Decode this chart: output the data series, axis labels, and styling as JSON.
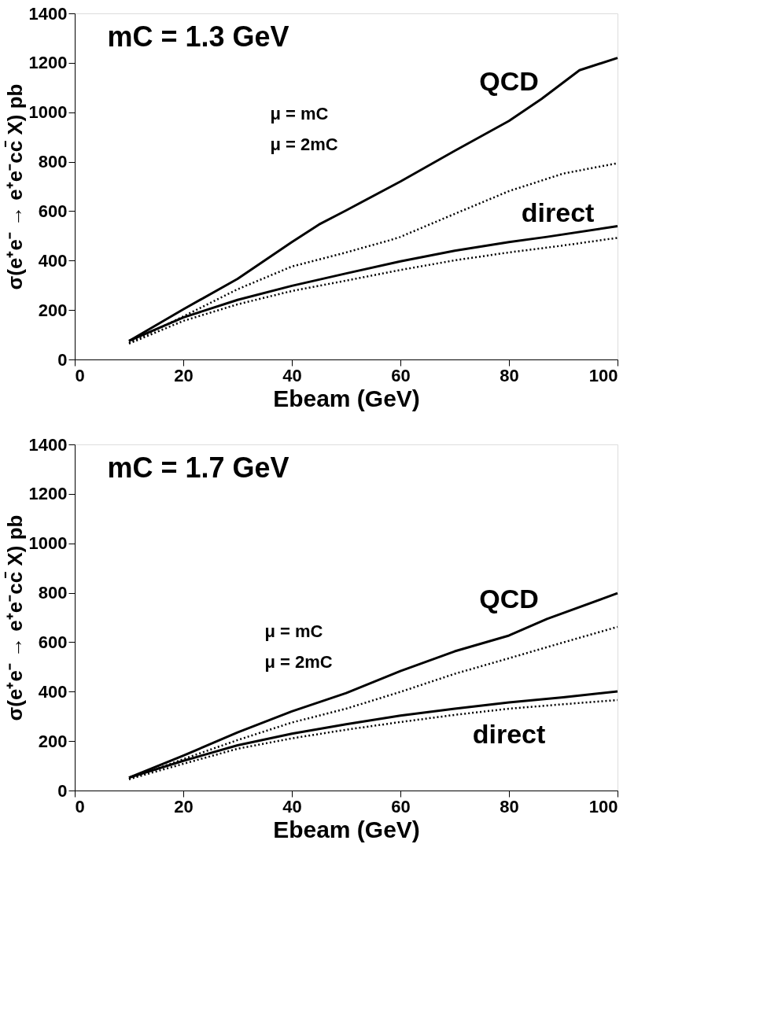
{
  "chart_data": [
    {
      "type": "line",
      "xlabel": "Ebeam (GeV)",
      "ylabel": "σ(e⁺e⁻ → e⁺e⁻cc̄ X) pb",
      "xlim": [
        0,
        100
      ],
      "ylim": [
        0,
        1400
      ],
      "xticks": [
        0,
        20,
        40,
        60,
        80,
        100
      ],
      "yticks": [
        0,
        200,
        400,
        600,
        800,
        1000,
        1200,
        1400
      ],
      "grid": false,
      "x": [
        10,
        20,
        30,
        40,
        45,
        50,
        60,
        70,
        80,
        86,
        93,
        100
      ],
      "series": [
        {
          "color": "#000000",
          "line_style": "solid",
          "values": [
            75,
            203,
            326,
            475,
            546,
            603,
            720,
            844,
            965,
            1054,
            1170,
            1220
          ]
        },
        {
          "color": "#000000",
          "line_style": "dotted",
          "x": [
            10,
            20,
            30,
            40,
            50,
            58,
            60,
            70,
            80,
            90,
            100
          ],
          "values": [
            67,
            174,
            284,
            376,
            433,
            482,
            496,
            589,
            681,
            752,
            794
          ]
        },
        {
          "color": "#000000",
          "line_style": "solid",
          "x": [
            10,
            20,
            30,
            40,
            50,
            60,
            70,
            80,
            87,
            100
          ],
          "values": [
            75,
            170,
            241,
            298,
            348,
            397,
            440,
            475,
            496,
            539
          ]
        },
        {
          "color": "#000000",
          "line_style": "dotted",
          "x": [
            10,
            20,
            30,
            40,
            50,
            60,
            70,
            80,
            90,
            100
          ],
          "values": [
            64,
            156,
            223,
            277,
            319,
            362,
            401,
            433,
            461,
            492
          ]
        }
      ],
      "annotations": [
        "mC = 1.3 GeV",
        "QCD",
        "direct",
        "μ = mC",
        "μ = 2mC"
      ]
    },
    {
      "type": "line",
      "xlabel": "Ebeam (GeV)",
      "ylabel": "σ(e⁺e⁻ → e⁺e⁻cc̄ X) pb",
      "xlim": [
        0,
        100
      ],
      "ylim": [
        0,
        1400
      ],
      "xticks": [
        0,
        20,
        40,
        60,
        80,
        100
      ],
      "yticks": [
        0,
        200,
        400,
        600,
        800,
        1000,
        1200,
        1400
      ],
      "grid": false,
      "x": [
        10,
        20,
        30,
        40,
        50,
        60,
        70,
        80,
        87,
        100
      ],
      "series": [
        {
          "color": "#000000",
          "line_style": "solid",
          "values": [
            52,
            141,
            235,
            320,
            394,
            483,
            563,
            627,
            694,
            798
          ]
        },
        {
          "color": "#000000",
          "line_style": "dotted",
          "x": [
            10,
            20,
            30,
            40,
            50,
            60,
            70,
            80,
            90,
            100
          ],
          "values": [
            46,
            127,
            204,
            275,
            331,
            399,
            472,
            535,
            599,
            662
          ]
        },
        {
          "color": "#000000",
          "line_style": "solid",
          "x": [
            10,
            20,
            30,
            40,
            50,
            60,
            70,
            80,
            90,
            100
          ],
          "values": [
            52,
            120,
            183,
            230,
            268,
            303,
            331,
            356,
            377,
            401
          ]
        },
        {
          "color": "#000000",
          "line_style": "dotted",
          "x": [
            10,
            20,
            30,
            40,
            50,
            60,
            70,
            80,
            90,
            100
          ],
          "values": [
            46,
            108,
            169,
            211,
            246,
            277,
            306,
            331,
            349,
            366
          ]
        }
      ],
      "annotations": [
        "mC = 1.7 GeV",
        "QCD",
        "direct",
        "μ = mC",
        "μ = 2mC"
      ]
    }
  ]
}
